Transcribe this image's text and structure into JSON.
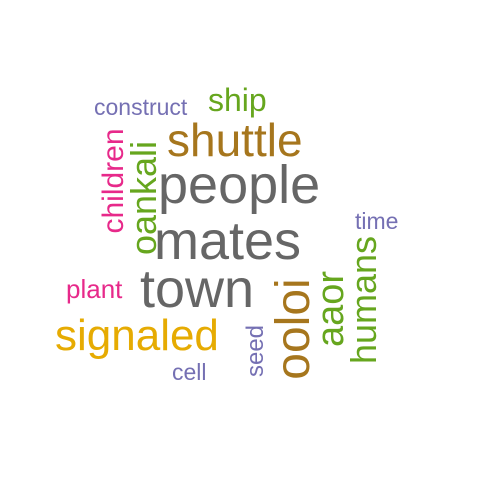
{
  "words": {
    "people": "people",
    "mates": "mates",
    "town": "town",
    "shuttle": "shuttle",
    "signaled": "signaled",
    "oankali": "oankali",
    "oolo": "ooloi",
    "aaor": "aaor",
    "humans": "humans",
    "children": "children",
    "ship": "ship",
    "construct": "construct",
    "plant": "plant",
    "time": "time",
    "seed": "seed",
    "cell": "cell"
  },
  "colors": {
    "gray": "#666666",
    "brown": "#a6761d",
    "gold": "#e6ab02",
    "green": "#66a61e",
    "pink": "#e7298a",
    "purple": "#7570b3"
  }
}
